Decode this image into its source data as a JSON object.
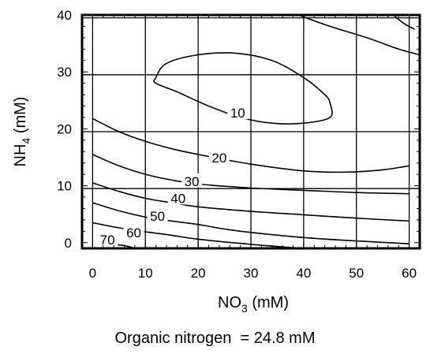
{
  "chart_data": {
    "type": "contour",
    "title": "",
    "xlabel": {
      "base": "NO",
      "sub": "3",
      "suffix": " (mM)"
    },
    "ylabel": {
      "base": "NH",
      "sub": "4",
      "suffix": " (mM)"
    },
    "xlim": [
      -2,
      62
    ],
    "ylim": [
      -1,
      40
    ],
    "xticks": [
      0,
      10,
      20,
      30,
      40,
      50,
      60
    ],
    "yticks": [
      0,
      10,
      20,
      30,
      40
    ],
    "grid": true,
    "grid_x": [
      0,
      10,
      20,
      30,
      40,
      50,
      60
    ],
    "grid_y": [
      9.5,
      19.5,
      29.5,
      39.5
    ],
    "contours": [
      {
        "level": "10",
        "closed": true,
        "points": [
          [
            12,
            29
          ],
          [
            14,
            31.5
          ],
          [
            20,
            33
          ],
          [
            27,
            33.3
          ],
          [
            34,
            32
          ],
          [
            40,
            29
          ],
          [
            44,
            26
          ],
          [
            45,
            24.5
          ],
          [
            45,
            22
          ],
          [
            40,
            21
          ],
          [
            34,
            21
          ],
          [
            28,
            22
          ],
          [
            22,
            24
          ],
          [
            16,
            26.5
          ],
          [
            12,
            28
          ]
        ],
        "label_at": [
          27.5,
          22.8
        ]
      },
      {
        "level": "",
        "closed": false,
        "points": [
          [
            39,
            40
          ],
          [
            45,
            38
          ],
          [
            52,
            36
          ],
          [
            58,
            34
          ],
          [
            62,
            33
          ]
        ],
        "label_at": null
      },
      {
        "level": "",
        "closed": false,
        "points": [
          [
            57,
            40
          ],
          [
            59,
            38.5
          ],
          [
            61,
            37.5
          ]
        ],
        "label_at": null
      },
      {
        "level": "20",
        "closed": false,
        "points": [
          [
            0,
            21.8
          ],
          [
            5,
            19.5
          ],
          [
            10,
            17.8
          ],
          [
            15,
            16.5
          ],
          [
            20,
            15.5
          ],
          [
            30,
            13.8
          ],
          [
            40,
            12.6
          ],
          [
            48,
            12.4
          ],
          [
            55,
            12.8
          ],
          [
            60,
            13.5
          ]
        ],
        "label_at": [
          24,
          14.9
        ]
      },
      {
        "level": "30",
        "closed": false,
        "points": [
          [
            0,
            15.5
          ],
          [
            5,
            13.5
          ],
          [
            10,
            12
          ],
          [
            15,
            11
          ],
          [
            20,
            10.3
          ],
          [
            30,
            9.6
          ],
          [
            40,
            9.2
          ],
          [
            50,
            8.8
          ],
          [
            60,
            8.6
          ]
        ],
        "label_at": [
          18.8,
          10.8
        ]
      },
      {
        "level": "40",
        "closed": false,
        "points": [
          [
            0,
            10.5
          ],
          [
            5,
            9
          ],
          [
            10,
            7.8
          ],
          [
            15,
            7
          ],
          [
            20,
            6.3
          ],
          [
            30,
            5.5
          ],
          [
            40,
            4.9
          ],
          [
            50,
            4.3
          ],
          [
            60,
            3.8
          ]
        ],
        "label_at": [
          16.2,
          7.8
        ]
      },
      {
        "level": "50",
        "closed": false,
        "points": [
          [
            0,
            7
          ],
          [
            5,
            5.6
          ],
          [
            10,
            4.5
          ],
          [
            15,
            3.8
          ],
          [
            20,
            3.2
          ],
          [
            25,
            2.4
          ],
          [
            30,
            1.8
          ],
          [
            40,
            0.9
          ],
          [
            50,
            0.3
          ],
          [
            60,
            -0.2
          ]
        ],
        "label_at": [
          12.3,
          4.7
        ]
      },
      {
        "level": "60",
        "closed": false,
        "points": [
          [
            0,
            3.5
          ],
          [
            5,
            2.6
          ],
          [
            10,
            1.9
          ],
          [
            15,
            1.3
          ],
          [
            20,
            0.6
          ],
          [
            30,
            -0.3
          ],
          [
            40,
            -1
          ]
        ],
        "label_at": [
          7.8,
          1.8
        ]
      },
      {
        "level": "70",
        "closed": false,
        "points": [
          [
            2.5,
            -0.2
          ],
          [
            6,
            -0.5
          ],
          [
            8,
            -1
          ]
        ],
        "label_at": [
          2.8,
          0.5
        ]
      }
    ],
    "caption": "Organic nitrogen  = 24.8 mM"
  }
}
